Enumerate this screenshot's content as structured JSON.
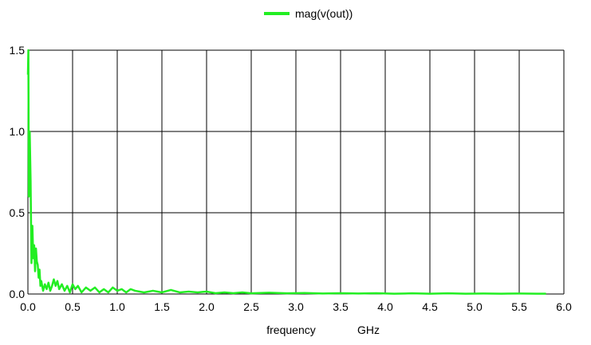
{
  "chart_data": {
    "type": "line",
    "title": "",
    "xlabel": "frequency",
    "xunit": "GHz",
    "ylabel": "",
    "xlim": [
      0,
      6
    ],
    "ylim": [
      0,
      1.5
    ],
    "x_ticks": [
      "0.0",
      "0.5",
      "1.0",
      "1.5",
      "2.0",
      "2.5",
      "3.0",
      "3.5",
      "4.0",
      "4.5",
      "5.0",
      "5.5",
      "6.0"
    ],
    "y_ticks": [
      "0.0",
      "0.5",
      "1.0",
      "1.5"
    ],
    "grid": true,
    "legend": "top-center",
    "series": [
      {
        "name": "mag(v(out))",
        "color": "#22ee22",
        "x": [
          0,
          0.005,
          0.01,
          0.02,
          0.03,
          0.04,
          0.05,
          0.06,
          0.07,
          0.08,
          0.09,
          0.1,
          0.11,
          0.12,
          0.13,
          0.14,
          0.15,
          0.17,
          0.19,
          0.21,
          0.23,
          0.25,
          0.27,
          0.29,
          0.31,
          0.33,
          0.35,
          0.38,
          0.41,
          0.44,
          0.47,
          0.5,
          0.53,
          0.56,
          0.6,
          0.65,
          0.7,
          0.75,
          0.8,
          0.85,
          0.9,
          0.95,
          1.0,
          1.05,
          1.1,
          1.15,
          1.2,
          1.3,
          1.4,
          1.5,
          1.6,
          1.7,
          1.8,
          1.9,
          2.0,
          2.1,
          2.2,
          2.3,
          2.4,
          2.5,
          2.7,
          2.9,
          3.1,
          3.3,
          3.5,
          3.7,
          3.9,
          4.1,
          4.3,
          4.5,
          4.7,
          4.9,
          5.1,
          5.3,
          5.5,
          5.7,
          5.8
        ],
        "y": [
          1.35,
          1.5,
          0.6,
          1.0,
          0.7,
          0.19,
          0.42,
          0.22,
          0.3,
          0.14,
          0.28,
          0.2,
          0.18,
          0.1,
          0.15,
          0.05,
          0.08,
          0.02,
          0.06,
          0.03,
          0.07,
          0.02,
          0.05,
          0.09,
          0.05,
          0.08,
          0.03,
          0.06,
          0.02,
          0.05,
          0.01,
          0.06,
          0.03,
          0.05,
          0.01,
          0.04,
          0.02,
          0.04,
          0.01,
          0.03,
          0.01,
          0.04,
          0.02,
          0.03,
          0.01,
          0.03,
          0.02,
          0.01,
          0.02,
          0.01,
          0.025,
          0.01,
          0.015,
          0.01,
          0.015,
          0.005,
          0.01,
          0.005,
          0.01,
          0.004,
          0.008,
          0.004,
          0.006,
          0.003,
          0.005,
          0.003,
          0.005,
          0.002,
          0.004,
          0.002,
          0.004,
          0.002,
          0.003,
          0.002,
          0.003,
          0.002,
          0.002
        ]
      }
    ]
  }
}
